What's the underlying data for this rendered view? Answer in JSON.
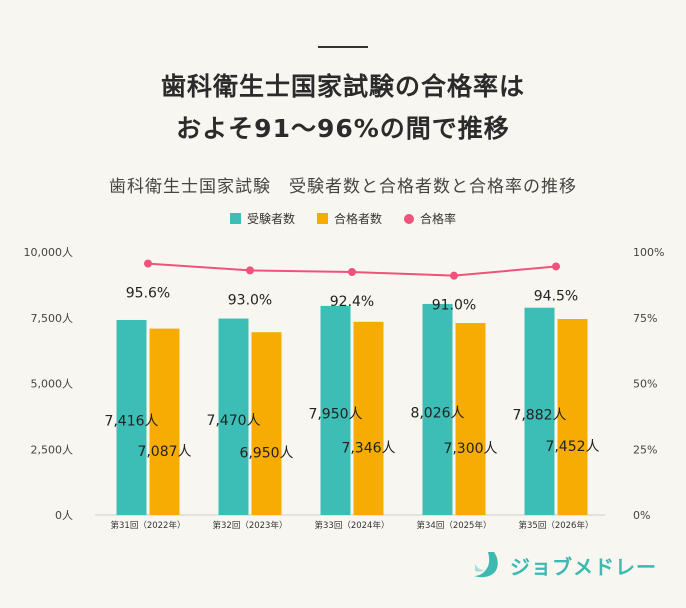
{
  "headline": {
    "line1": "歯科衛生士国家試験の合格率は",
    "line2": "およそ91～96%の間で推移"
  },
  "chart_data": {
    "type": "bar",
    "title": "歯科衛生士国家試験　受験者数と合格者数と合格率の推移",
    "categories": [
      "第31回（2022年）",
      "第32回（2023年）",
      "第33回（2024年）",
      "第34回（2025年）",
      "第35回（2026年）"
    ],
    "series": [
      {
        "name": "受験者数",
        "values": [
          7416,
          7470,
          7950,
          8026,
          7882
        ],
        "labels": [
          "7,416人",
          "7,470人",
          "7,950人",
          "8,026人",
          "7,882人"
        ],
        "color": "#3cbdb6",
        "axis": "left"
      },
      {
        "name": "合格者数",
        "values": [
          7087,
          6950,
          7346,
          7300,
          7452
        ],
        "labels": [
          "7,087人",
          "6,950人",
          "7,346人",
          "7,300人",
          "7,452人"
        ],
        "color": "#f7ac04",
        "axis": "left"
      },
      {
        "name": "合格率",
        "type": "line",
        "values": [
          95.6,
          93.0,
          92.4,
          91.0,
          94.5
        ],
        "labels": [
          "95.6%",
          "93.0%",
          "92.4%",
          "91.0%",
          "94.5%"
        ],
        "color": "#f0527a",
        "axis": "right"
      }
    ],
    "y_left": {
      "range": [
        0,
        10000
      ],
      "ticks": [
        0,
        2500,
        5000,
        7500,
        10000
      ],
      "tick_labels": [
        "0人",
        "2,500人",
        "5,000人",
        "7,500人",
        "10,000人"
      ]
    },
    "y_right": {
      "range": [
        0,
        100
      ],
      "ticks": [
        0,
        25,
        50,
        75,
        100
      ],
      "tick_labels": [
        "0%",
        "25%",
        "50%",
        "75%",
        "100%"
      ]
    },
    "legend": "top-center",
    "grid": false
  },
  "logo": {
    "text": "ジョブメドレー",
    "color": "#3cb9b0"
  }
}
